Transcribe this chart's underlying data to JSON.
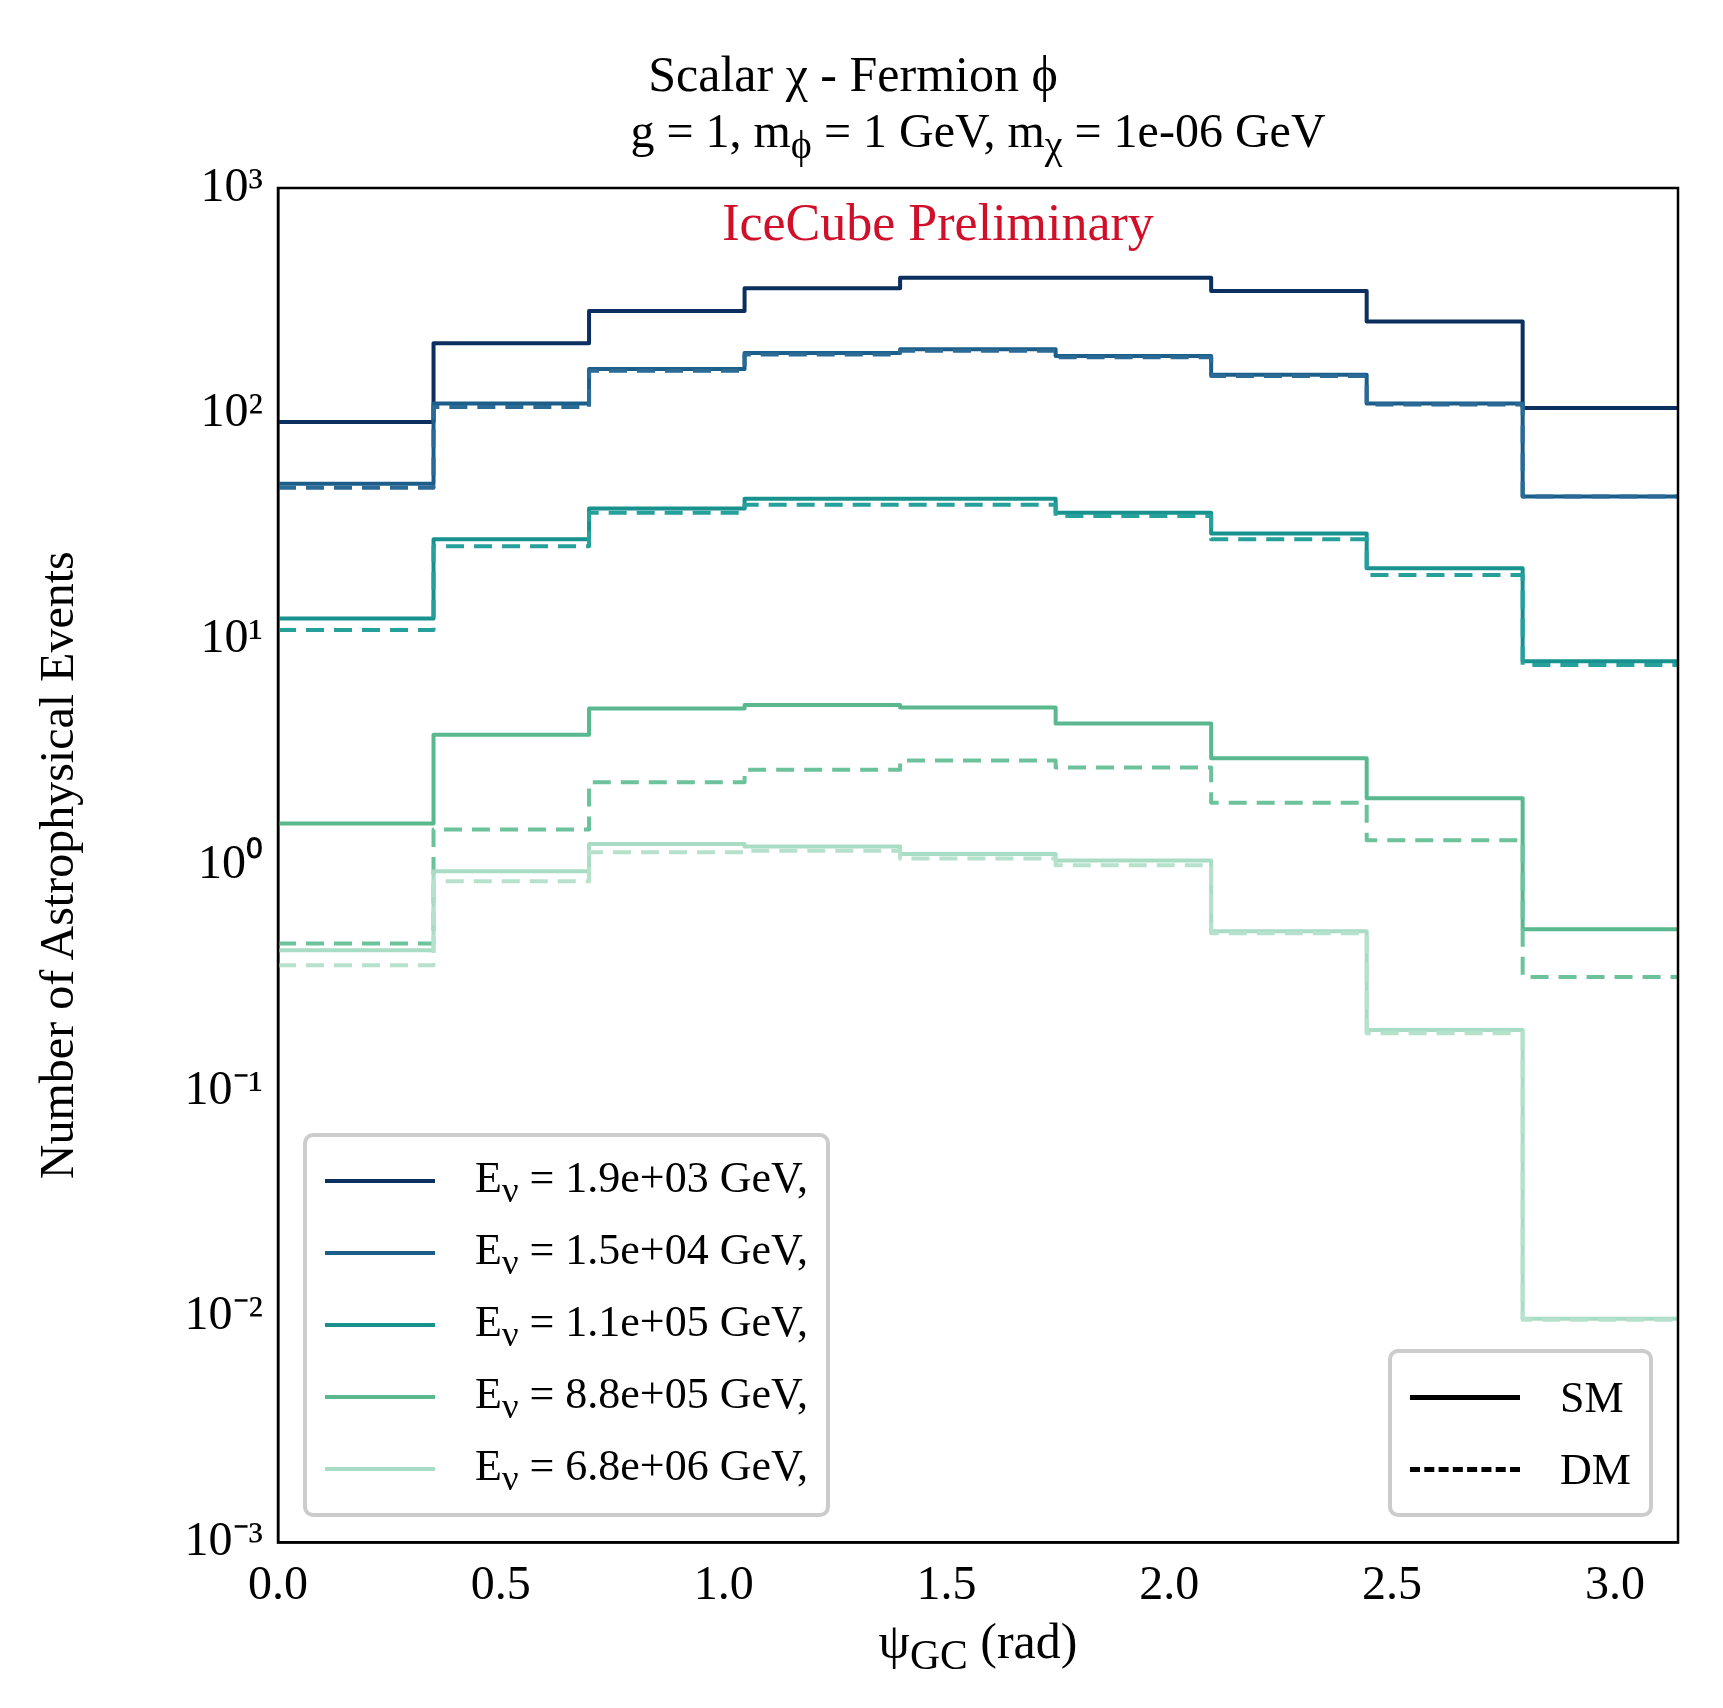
{
  "chart_data": {
    "type": "histogram",
    "title": "Scalar χ - Fermion ϕ",
    "subtitle": "g = 1, m$_{ϕ}$ = 1 GeV, m$_{χ}$ = 1e-06 GeV",
    "xlabel": "ψ$_{GC}$ (rad)",
    "ylabel": "Number of Astrophysical Events",
    "bins": [
      0,
      0.349,
      0.698,
      1.047,
      1.396,
      1.745,
      2.094,
      2.443,
      2.793,
      3.1416
    ],
    "series": [
      {
        "name": "E$_{ν}$ = 1.9e+03 GeV,",
        "color": "#0b2f5e",
        "line_style": "solid",
        "values": [
          92,
          205,
          285,
          360,
          400,
          400,
          350,
          256,
          106
        ]
      },
      {
        "name": "E$_{ν}$ = 1.5e+04 GeV,",
        "color": "#1b5e8a",
        "line_style": "solid",
        "values": [
          49,
          111,
          158,
          186,
          193,
          180,
          149,
          111,
          43
        ]
      },
      {
        "color": "#2a6a95",
        "line_style": "dashed",
        "values": [
          47,
          107,
          155,
          183,
          190,
          178,
          147,
          110,
          43
        ]
      },
      {
        "name": "E$_{ν}$ = 1.1e+05 GeV,",
        "color": "#17928e",
        "line_style": "solid",
        "values": [
          12.4,
          27.8,
          38,
          42,
          42,
          36.4,
          29.5,
          20.7,
          8.0
        ]
      },
      {
        "color": "#26a09a",
        "line_style": "dashed",
        "values": [
          11.0,
          25.9,
          36.4,
          39.5,
          39.5,
          35.2,
          27.8,
          19.3,
          7.7
        ]
      },
      {
        "name": "E$_{ν}$ = 8.8e+05 GeV,",
        "color": "#5ab88e",
        "line_style": "solid",
        "values": [
          1.53,
          3.78,
          4.94,
          5.12,
          5.0,
          4.24,
          2.98,
          1.98,
          0.52
        ]
      },
      {
        "color": "#6cc29b",
        "line_style": "dashed",
        "values": [
          0.45,
          1.44,
          2.33,
          2.65,
          2.91,
          2.71,
          1.89,
          1.29,
          0.32
        ]
      },
      {
        "name": "E$_{ν}$ = 6.8e+06 GeV,",
        "color": "#a9dcc4",
        "line_style": "solid",
        "values": [
          0.42,
          0.94,
          1.24,
          1.21,
          1.12,
          1.05,
          0.51,
          0.186,
          0.0098
        ]
      },
      {
        "color": "#b6e2cd",
        "line_style": "dashed",
        "values": [
          0.36,
          0.85,
          1.14,
          1.16,
          1.07,
          1.0,
          0.5,
          0.18,
          0.0097
        ]
      }
    ],
    "xlim": [
      0,
      3.1416
    ],
    "xticks": [
      {
        "value": 0,
        "label": "0.0"
      },
      {
        "value": 0.5,
        "label": "0.5"
      },
      {
        "value": 1,
        "label": "1.0"
      },
      {
        "value": 1.5,
        "label": "1.5"
      },
      {
        "value": 2,
        "label": "2.0"
      },
      {
        "value": 2.5,
        "label": "2.5"
      },
      {
        "value": 3,
        "label": "3.0"
      }
    ],
    "ylim": [
      0.001,
      1000
    ],
    "yticks": [
      {
        "value": 0.001,
        "label": "10⁻³"
      },
      {
        "value": 0.01,
        "label": "10⁻²"
      },
      {
        "value": 0.1,
        "label": "10⁻¹"
      },
      {
        "value": 1,
        "label": "10⁰"
      },
      {
        "value": 10,
        "label": "10¹"
      },
      {
        "value": 100,
        "label": "10²"
      },
      {
        "value": 1000,
        "label": "10³"
      }
    ],
    "log": "y",
    "grid": false,
    "legend": "bottom left",
    "annotations": [
      "IceCube Preliminary",
      "SM",
      "DM"
    ]
  }
}
